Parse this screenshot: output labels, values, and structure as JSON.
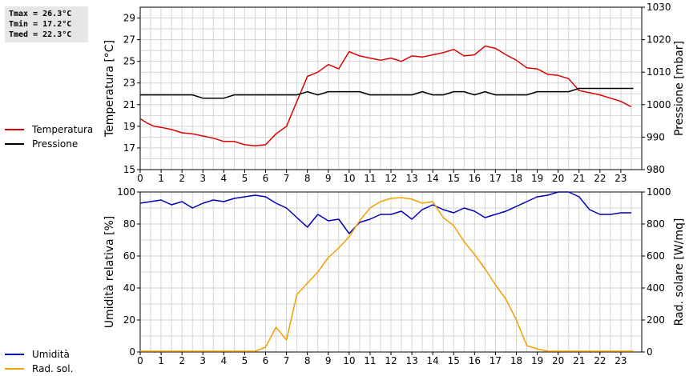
{
  "stats": {
    "tmax": "Tmax = 26.3°C",
    "tmin": "Tmin = 17.2°C",
    "tmed": "Tmed = 22.3°C"
  },
  "legend_top": [
    {
      "label": "Temperatura",
      "color": "#dd0000"
    },
    {
      "label": "Pressione",
      "color": "#000000"
    }
  ],
  "legend_bottom": [
    {
      "label": "Umidità",
      "color": "#0000bb"
    },
    {
      "label": "Rad. sol.",
      "color": "#f0a000"
    }
  ],
  "chart_data": [
    {
      "type": "line",
      "xlim": [
        0,
        24
      ],
      "x_ticks": [
        0,
        1,
        2,
        3,
        4,
        5,
        6,
        7,
        8,
        9,
        10,
        11,
        12,
        13,
        14,
        15,
        16,
        17,
        18,
        19,
        20,
        21,
        22,
        23
      ],
      "left_axis": {
        "label": "Temperatura [°C]",
        "ylim": [
          15,
          30
        ],
        "ticks": [
          15,
          17,
          19,
          21,
          23,
          25,
          27,
          29
        ]
      },
      "right_axis": {
        "label": "Pressione [mbar]",
        "ylim": [
          980,
          1030
        ],
        "ticks": [
          980,
          990,
          1000,
          1010,
          1020,
          1030
        ]
      },
      "grid": true,
      "series": [
        {
          "name": "Temperatura",
          "axis": "left",
          "color": "#dd0000",
          "points": [
            [
              0,
              19.7
            ],
            [
              0.33,
              19.3
            ],
            [
              0.67,
              19.0
            ],
            [
              1,
              18.9
            ],
            [
              1.5,
              18.7
            ],
            [
              2,
              18.4
            ],
            [
              2.5,
              18.3
            ],
            [
              3,
              18.1
            ],
            [
              3.5,
              17.9
            ],
            [
              4,
              17.6
            ],
            [
              4.5,
              17.6
            ],
            [
              5,
              17.3
            ],
            [
              5.5,
              17.2
            ],
            [
              6,
              17.3
            ],
            [
              6.5,
              18.3
            ],
            [
              7,
              19.0
            ],
            [
              7.5,
              21.3
            ],
            [
              8,
              23.6
            ],
            [
              8.5,
              24.0
            ],
            [
              9,
              24.7
            ],
            [
              9.5,
              24.3
            ],
            [
              10,
              25.9
            ],
            [
              10.5,
              25.5
            ],
            [
              11,
              25.3
            ],
            [
              11.5,
              25.1
            ],
            [
              12,
              25.3
            ],
            [
              12.5,
              25.0
            ],
            [
              13,
              25.5
            ],
            [
              13.5,
              25.4
            ],
            [
              14,
              25.6
            ],
            [
              14.5,
              25.8
            ],
            [
              15,
              26.1
            ],
            [
              15.5,
              25.5
            ],
            [
              16,
              25.6
            ],
            [
              16.5,
              26.4
            ],
            [
              17,
              26.2
            ],
            [
              17.5,
              25.6
            ],
            [
              18,
              25.1
            ],
            [
              18.5,
              24.4
            ],
            [
              19,
              24.3
            ],
            [
              19.5,
              23.8
            ],
            [
              20,
              23.7
            ],
            [
              20.5,
              23.4
            ],
            [
              21,
              22.3
            ],
            [
              21.5,
              22.1
            ],
            [
              22,
              21.9
            ],
            [
              22.5,
              21.6
            ],
            [
              23,
              21.3
            ],
            [
              23.5,
              20.8
            ]
          ]
        },
        {
          "name": "Pressione",
          "axis": "right",
          "color": "#000000",
          "points": [
            [
              0,
              1003
            ],
            [
              2.5,
              1003
            ],
            [
              3,
              1002
            ],
            [
              4,
              1002
            ],
            [
              4.5,
              1003
            ],
            [
              7.5,
              1003
            ],
            [
              8,
              1004
            ],
            [
              8.5,
              1003
            ],
            [
              9,
              1004
            ],
            [
              10.5,
              1004
            ],
            [
              11,
              1003
            ],
            [
              13,
              1003
            ],
            [
              13.5,
              1004
            ],
            [
              14,
              1003
            ],
            [
              14.5,
              1003
            ],
            [
              15,
              1004
            ],
            [
              15.5,
              1004
            ],
            [
              16,
              1003
            ],
            [
              16.5,
              1004
            ],
            [
              17,
              1003
            ],
            [
              18.5,
              1003
            ],
            [
              19,
              1004
            ],
            [
              20.5,
              1004
            ],
            [
              21,
              1005
            ],
            [
              23.6,
              1005
            ]
          ]
        }
      ]
    },
    {
      "type": "line",
      "xlim": [
        0,
        24
      ],
      "x_ticks": [
        0,
        1,
        2,
        3,
        4,
        5,
        6,
        7,
        8,
        9,
        10,
        11,
        12,
        13,
        14,
        15,
        16,
        17,
        18,
        19,
        20,
        21,
        22,
        23
      ],
      "left_axis": {
        "label": "Umidità relativa [%]",
        "ylim": [
          0,
          100
        ],
        "ticks": [
          0,
          20,
          40,
          60,
          80,
          100
        ]
      },
      "right_axis": {
        "label": "Rad. solare [W/mq]",
        "ylim": [
          0,
          1000
        ],
        "ticks": [
          0,
          200,
          400,
          600,
          800,
          1000
        ]
      },
      "grid": true,
      "series": [
        {
          "name": "Umidità",
          "axis": "left",
          "color": "#0000bb",
          "points": [
            [
              0,
              93
            ],
            [
              0.5,
              94
            ],
            [
              1,
              95
            ],
            [
              1.5,
              92
            ],
            [
              2,
              94
            ],
            [
              2.5,
              90
            ],
            [
              3,
              93
            ],
            [
              3.5,
              95
            ],
            [
              4,
              94
            ],
            [
              4.5,
              96
            ],
            [
              5,
              97
            ],
            [
              5.5,
              98
            ],
            [
              6,
              97
            ],
            [
              6.5,
              93
            ],
            [
              7,
              90
            ],
            [
              7.5,
              84
            ],
            [
              8,
              78
            ],
            [
              8.5,
              86
            ],
            [
              9,
              82
            ],
            [
              9.5,
              83
            ],
            [
              10,
              74
            ],
            [
              10.5,
              81
            ],
            [
              11,
              83
            ],
            [
              11.5,
              86
            ],
            [
              12,
              86
            ],
            [
              12.5,
              88
            ],
            [
              13,
              83
            ],
            [
              13.5,
              89
            ],
            [
              14,
              92
            ],
            [
              14.5,
              89
            ],
            [
              15,
              87
            ],
            [
              15.5,
              90
            ],
            [
              16,
              88
            ],
            [
              16.5,
              84
            ],
            [
              17,
              86
            ],
            [
              17.5,
              88
            ],
            [
              18,
              91
            ],
            [
              18.5,
              94
            ],
            [
              19,
              97
            ],
            [
              19.5,
              98
            ],
            [
              20,
              100
            ],
            [
              20.5,
              100
            ],
            [
              21,
              97
            ],
            [
              21.5,
              89
            ],
            [
              22,
              86
            ],
            [
              22.5,
              86
            ],
            [
              23,
              87
            ],
            [
              23.5,
              87
            ]
          ]
        },
        {
          "name": "Rad. sol.",
          "axis": "right",
          "color": "#f0a000",
          "points": [
            [
              0,
              5
            ],
            [
              5.5,
              5
            ],
            [
              6,
              30
            ],
            [
              6.5,
              155
            ],
            [
              7,
              75
            ],
            [
              7.5,
              360
            ],
            [
              8,
              430
            ],
            [
              8.5,
              500
            ],
            [
              9,
              590
            ],
            [
              9.5,
              650
            ],
            [
              10,
              720
            ],
            [
              10.5,
              820
            ],
            [
              11,
              900
            ],
            [
              11.5,
              940
            ],
            [
              12,
              960
            ],
            [
              12.5,
              965
            ],
            [
              13,
              955
            ],
            [
              13.5,
              930
            ],
            [
              14,
              940
            ],
            [
              14.5,
              840
            ],
            [
              15,
              790
            ],
            [
              15.5,
              690
            ],
            [
              16,
              610
            ],
            [
              16.5,
              520
            ],
            [
              17,
              420
            ],
            [
              17.5,
              330
            ],
            [
              18,
              200
            ],
            [
              18.5,
              40
            ],
            [
              19,
              20
            ],
            [
              19.5,
              5
            ],
            [
              23.6,
              5
            ]
          ]
        }
      ]
    }
  ]
}
